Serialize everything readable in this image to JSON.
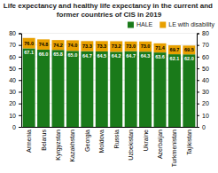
{
  "chart_data": {
    "type": "bar",
    "stacked": true,
    "title": "Life expectancy and healthy life expectancy in the current and former countries of CIS in 2019",
    "categories": [
      "Armenia",
      "Belarus",
      "Kyrgyzstan",
      "Kazakhstan",
      "Georgia",
      "Moldova",
      "Russia",
      "Uzbekistan",
      "Ukraine",
      "Azerbaijan",
      "Turkmenistan",
      "Tajikistan"
    ],
    "series": [
      {
        "name": "HALE",
        "color": "#1a7a1a",
        "values": [
          67.1,
          66.0,
          65.8,
          65.0,
          64.7,
          64.5,
          64.2,
          64.7,
          64.3,
          63.6,
          62.1,
          62.0
        ],
        "value_labels": [
          "67.1",
          "66.0",
          "65.8",
          "65.0",
          "64.7",
          "64.5",
          "64.2",
          "64.7",
          "64.3",
          "63.6",
          "62.1",
          "62.0"
        ]
      },
      {
        "name": "LE with disability",
        "color": "#e8a000",
        "values": [
          8.9,
          8.8,
          8.4,
          9.0,
          8.6,
          8.8,
          9.0,
          8.3,
          8.7,
          7.8,
          7.6,
          7.5
        ]
      }
    ],
    "totals": [
      76.0,
      74.8,
      74.2,
      74.0,
      73.3,
      73.3,
      73.2,
      73.0,
      73.0,
      71.4,
      69.7,
      69.5
    ],
    "total_labels": [
      "76.0",
      "74.8",
      "74.2",
      "74.0",
      "73.3",
      "73.3",
      "73.2",
      "73.0",
      "73.0",
      "71.4",
      "69.7",
      "69.5"
    ],
    "data_labels": true,
    "ylim": [
      0,
      80
    ],
    "yticks": [
      0,
      10,
      20,
      30,
      40,
      50,
      60,
      70,
      80
    ],
    "y2lim": [
      0,
      80
    ],
    "y2ticks": [
      0,
      10,
      20,
      30,
      40,
      50,
      60,
      70,
      80
    ],
    "grid": true,
    "legend": "top-right"
  }
}
